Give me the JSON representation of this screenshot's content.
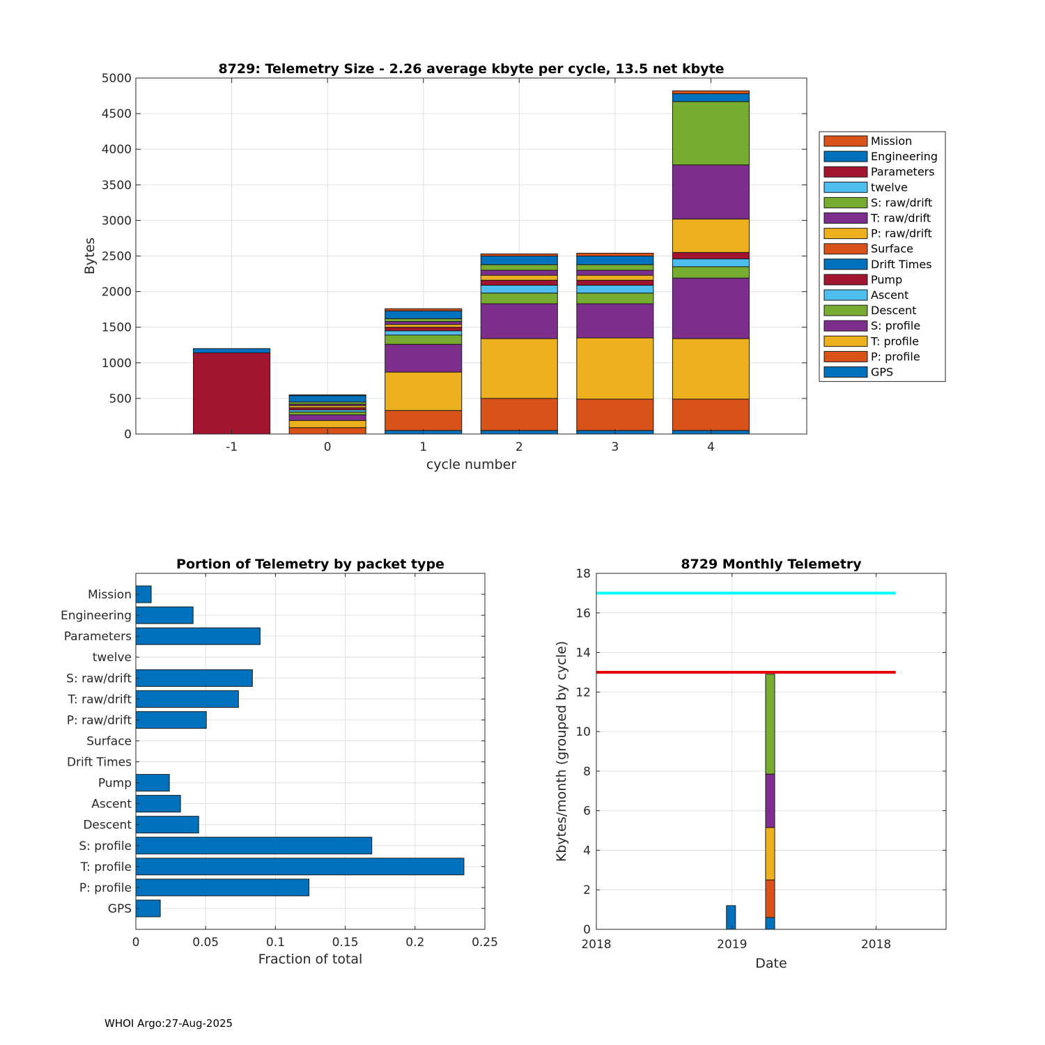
{
  "footer": "WHOI Argo:27-Aug-2025",
  "chart_data": [
    {
      "type": "bar",
      "stacked": true,
      "title": "8729: Telemetry Size - 2.26 average kbyte per cycle,   13.5 net kbyte",
      "xlabel": "cycle number",
      "ylabel": "Bytes",
      "categories": [
        "-1",
        "0",
        "1",
        "2",
        "3",
        "4"
      ],
      "ylim": [
        0,
        5000
      ],
      "xlim": [
        -2,
        5
      ],
      "yticks": [
        0,
        500,
        1000,
        1500,
        2000,
        2500,
        3000,
        3500,
        4000,
        4500,
        5000
      ],
      "grid": true,
      "legend_position": "right",
      "series": [
        {
          "name": "GPS",
          "color": "#0072BD",
          "values": [
            0,
            0,
            50,
            50,
            50,
            50
          ]
        },
        {
          "name": "P: profile",
          "color": "#D95319",
          "values": [
            0,
            90,
            280,
            450,
            440,
            440
          ]
        },
        {
          "name": "T: profile",
          "color": "#EDB120",
          "values": [
            0,
            100,
            540,
            840,
            860,
            850
          ]
        },
        {
          "name": "S: profile",
          "color": "#7E2F8E",
          "values": [
            0,
            80,
            390,
            490,
            480,
            850
          ]
        },
        {
          "name": "Descent",
          "color": "#77AC30",
          "values": [
            0,
            40,
            130,
            150,
            150,
            160
          ]
        },
        {
          "name": "Ascent",
          "color": "#4DBEEE",
          "values": [
            0,
            30,
            60,
            110,
            110,
            110
          ]
        },
        {
          "name": "Pump",
          "color": "#A2142F",
          "values": [
            0,
            30,
            50,
            70,
            70,
            90
          ]
        },
        {
          "name": "Drift Times",
          "color": "#0072BD",
          "values": [
            0,
            0,
            0,
            0,
            0,
            0
          ]
        },
        {
          "name": "Surface",
          "color": "#D95319",
          "values": [
            0,
            0,
            0,
            0,
            0,
            0
          ]
        },
        {
          "name": "P: raw/drift",
          "color": "#EDB120",
          "values": [
            0,
            30,
            40,
            70,
            70,
            470
          ]
        },
        {
          "name": "T: raw/drift",
          "color": "#7E2F8E",
          "values": [
            0,
            20,
            40,
            70,
            70,
            760
          ]
        },
        {
          "name": "S: raw/drift",
          "color": "#77AC30",
          "values": [
            0,
            30,
            40,
            80,
            80,
            890
          ]
        },
        {
          "name": "twelve",
          "color": "#4DBEEE",
          "values": [
            0,
            0,
            0,
            0,
            0,
            0
          ]
        },
        {
          "name": "Parameters",
          "color": "#A2142F",
          "values": [
            1140,
            0,
            0,
            0,
            0,
            0
          ]
        },
        {
          "name": "Engineering",
          "color": "#0072BD",
          "values": [
            60,
            90,
            110,
            120,
            120,
            110
          ]
        },
        {
          "name": "Mission",
          "color": "#D95319",
          "values": [
            0,
            10,
            30,
            30,
            40,
            40
          ]
        }
      ]
    },
    {
      "type": "bar",
      "orientation": "horizontal",
      "title": "Portion of Telemetry by packet type",
      "xlabel": "Fraction of total",
      "ylabel": "",
      "xlim": [
        0,
        0.25
      ],
      "xticks": [
        "0",
        "0.05",
        "0.1",
        "0.15",
        "0.2",
        "0.25"
      ],
      "xtick_values": [
        0,
        0.05,
        0.1,
        0.15,
        0.2,
        0.25
      ],
      "grid": true,
      "color": "#0072BD",
      "categories": [
        "GPS",
        "P: profile",
        "T: profile",
        "S: profile",
        "Descent",
        "Ascent",
        "Pump",
        "Drift Times",
        "Surface",
        "P: raw/drift",
        "T: raw/drift",
        "S: raw/drift",
        "twelve",
        "Parameters",
        "Engineering",
        "Mission"
      ],
      "values": [
        0.0175,
        0.124,
        0.235,
        0.169,
        0.045,
        0.032,
        0.024,
        0,
        0,
        0.0505,
        0.0735,
        0.0835,
        0,
        0.089,
        0.041,
        0.011
      ]
    },
    {
      "type": "bar",
      "stacked": true,
      "title": "8729 Monthly Telemetry",
      "xlabel": "Date",
      "ylabel": "Kbytes/month (grouped by cycle)",
      "ylim": [
        0,
        18
      ],
      "yticks": [
        0,
        2,
        4,
        6,
        8,
        10,
        12,
        14,
        16,
        18
      ],
      "xlim": [
        0,
        2.5
      ],
      "xtick_values": [
        0,
        0.97,
        2.0
      ],
      "xticks": [
        "2018",
        "2019",
        "2018"
      ],
      "grid": true,
      "bars": [
        {
          "x": 0.93,
          "width": 0.065,
          "segments": [
            {
              "value": 1.2,
              "color": "#0072BD"
            }
          ]
        },
        {
          "x": 1.21,
          "width": 0.065,
          "segments": [
            {
              "value": 0.6,
              "color": "#0072BD"
            },
            {
              "value": 1.9,
              "color": "#D95319"
            },
            {
              "value": 2.65,
              "color": "#EDB120"
            },
            {
              "value": 2.7,
              "color": "#7E2F8E"
            },
            {
              "value": 5.05,
              "color": "#77AC30"
            }
          ]
        }
      ],
      "hlines": [
        {
          "y": 17,
          "x_start": 0,
          "x_end": 2.14,
          "color": "#00FFFF"
        },
        {
          "y": 13,
          "x_start": 0,
          "x_end": 2.14,
          "color": "#E60000"
        }
      ]
    }
  ]
}
